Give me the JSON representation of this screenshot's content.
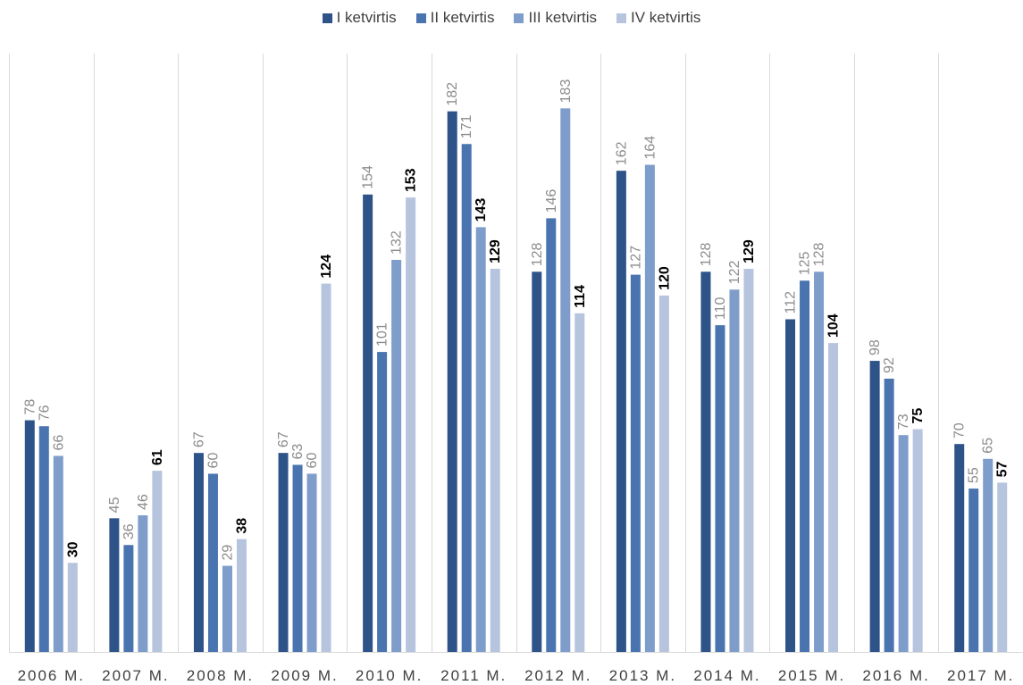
{
  "chart_data": {
    "type": "bar",
    "categories": [
      "2006 M.",
      "2007 M.",
      "2008 M.",
      "2009 M.",
      "2010 M.",
      "2011 M.",
      "2012 M.",
      "2013 M.",
      "2014 M.",
      "2015 M.",
      "2016 M.",
      "2017 M."
    ],
    "series": [
      {
        "name": "I ketvirtis",
        "color": "#2e5389",
        "values": [
          78,
          45,
          67,
          67,
          154,
          182,
          128,
          162,
          128,
          112,
          98,
          70
        ]
      },
      {
        "name": "II ketvirtis",
        "color": "#4a74b0",
        "values": [
          76,
          36,
          60,
          63,
          101,
          171,
          146,
          127,
          110,
          125,
          92,
          55
        ]
      },
      {
        "name": "III ketvirtis",
        "color": "#7f9dca",
        "values": [
          66,
          46,
          29,
          60,
          132,
          143,
          183,
          164,
          122,
          128,
          73,
          65
        ]
      },
      {
        "name": "IV ketvirtis",
        "color": "#b6c4de",
        "values": [
          30,
          61,
          38,
          124,
          153,
          129,
          114,
          120,
          129,
          104,
          75,
          57
        ]
      }
    ],
    "ylim": [
      0,
      200
    ],
    "grid": "vertical category separators",
    "legend": "top-center",
    "label_colors": {
      "default": "#8c8c8c",
      "emphasis": "#000000"
    },
    "emphasized_labels": [
      {
        "series": 3,
        "category": 0
      },
      {
        "series": 3,
        "category": 1
      },
      {
        "series": 3,
        "category": 2
      },
      {
        "series": 3,
        "category": 3
      },
      {
        "series": 3,
        "category": 4
      },
      {
        "series": 3,
        "category": 5
      },
      {
        "series": 2,
        "category": 5
      },
      {
        "series": 3,
        "category": 6
      },
      {
        "series": 3,
        "category": 7
      },
      {
        "series": 3,
        "category": 8
      },
      {
        "series": 3,
        "category": 9
      },
      {
        "series": 3,
        "category": 10
      },
      {
        "series": 3,
        "category": 11
      }
    ]
  }
}
